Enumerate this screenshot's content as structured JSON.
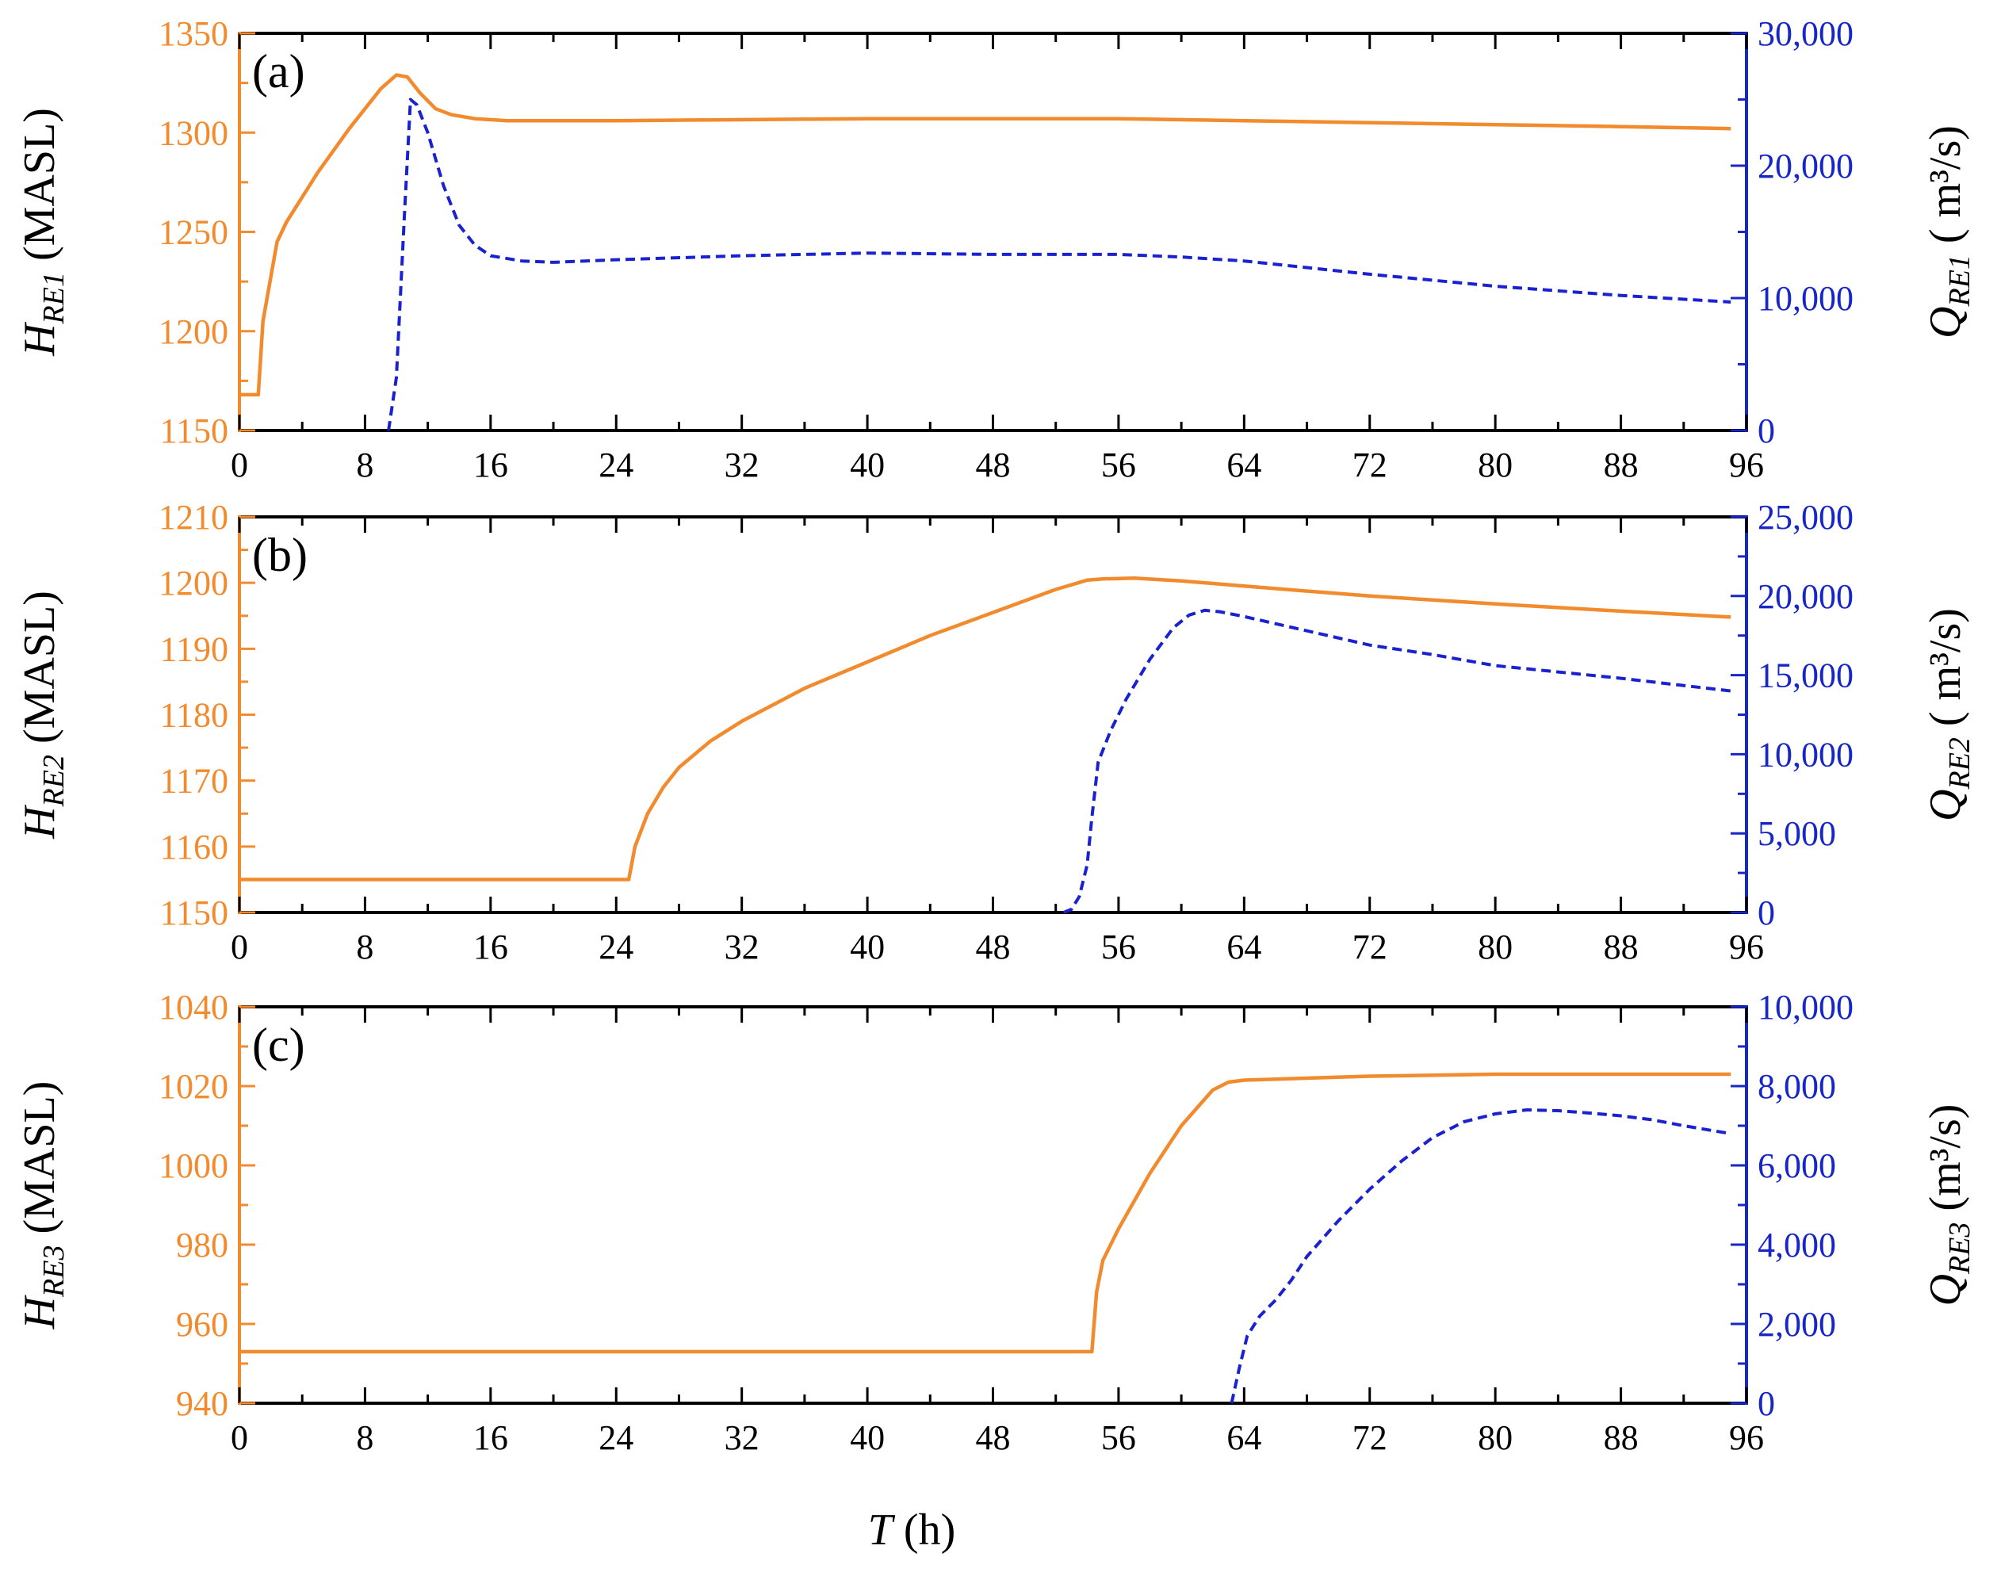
{
  "colors": {
    "left": "#f28a2e",
    "right": "#1726c7",
    "frame": "#000000",
    "orange_line": "#f28a2e",
    "blue_line": "#1a22d0"
  },
  "xaxis": {
    "label_italic": "T",
    "label_rest": " (h)"
  },
  "chart_data": [
    {
      "type": "line",
      "panel_label": "(a)",
      "xlim": [
        0,
        96
      ],
      "xticks": [
        0,
        8,
        16,
        24,
        32,
        40,
        48,
        56,
        64,
        72,
        80,
        88,
        96
      ],
      "xtick_labels": [
        "0",
        "8",
        "16",
        "24",
        "32",
        "40",
        "48",
        "56",
        "64",
        "72",
        "80",
        "88",
        "96"
      ],
      "left_axis": {
        "ylim": [
          1150,
          1350
        ],
        "ticks": [
          1150,
          1200,
          1250,
          1300,
          1350
        ],
        "tick_labels": [
          "1150",
          "1200",
          "1250",
          "1300",
          "1350"
        ],
        "label_main": "H",
        "label_sub": "RE1",
        "label_unit": " (MASL)"
      },
      "right_axis": {
        "ylim": [
          0,
          30000
        ],
        "ticks": [
          0,
          10000,
          20000,
          30000
        ],
        "tick_labels": [
          "0",
          "10,000",
          "20,000",
          "30,000"
        ],
        "label_main": "Q",
        "label_sub": "RE1",
        "label_unit": " ( m³/s)"
      },
      "series": [
        {
          "name": "H_RE1",
          "axis": "left",
          "style": "solid",
          "x": [
            0,
            1.2,
            1.5,
            2.4,
            3,
            5,
            7,
            9,
            10,
            10.7,
            11.5,
            12.5,
            13.5,
            15,
            17,
            24,
            40,
            56,
            64,
            72,
            80,
            88,
            95
          ],
          "y": [
            1168,
            1168,
            1205,
            1245,
            1255,
            1280,
            1302,
            1322,
            1329,
            1328,
            1320,
            1312,
            1309,
            1307,
            1306,
            1306,
            1307,
            1307,
            1306,
            1305,
            1304,
            1303,
            1302
          ]
        },
        {
          "name": "Q_RE1",
          "axis": "right",
          "style": "dashed",
          "x": [
            9.5,
            10,
            10.5,
            10.9,
            11.3,
            12,
            13,
            14,
            15,
            16,
            18,
            20,
            24,
            32,
            40,
            48,
            56,
            60,
            64,
            72,
            80,
            88,
            95
          ],
          "y": [
            0,
            4000,
            16000,
            25000,
            24600,
            22500,
            18500,
            15500,
            14000,
            13200,
            12800,
            12700,
            12900,
            13200,
            13400,
            13300,
            13300,
            13100,
            12800,
            11800,
            10900,
            10200,
            9700
          ]
        }
      ]
    },
    {
      "type": "line",
      "panel_label": "(b)",
      "xlim": [
        0,
        96
      ],
      "xticks": [
        0,
        8,
        16,
        24,
        32,
        40,
        48,
        56,
        64,
        72,
        80,
        88,
        96
      ],
      "xtick_labels": [
        "0",
        "8",
        "16",
        "24",
        "32",
        "40",
        "48",
        "56",
        "64",
        "72",
        "80",
        "88",
        "96"
      ],
      "left_axis": {
        "ylim": [
          1150,
          1210
        ],
        "ticks": [
          1150,
          1160,
          1170,
          1180,
          1190,
          1200,
          1210
        ],
        "tick_labels": [
          "1150",
          "1160",
          "1170",
          "1180",
          "1190",
          "1200",
          "1210"
        ],
        "label_main": "H",
        "label_sub": "RE2",
        "label_unit": " (MASL)"
      },
      "right_axis": {
        "ylim": [
          0,
          25000
        ],
        "ticks": [
          0,
          5000,
          10000,
          15000,
          20000,
          25000
        ],
        "tick_labels": [
          "0",
          "5,000",
          "10,000",
          "15,000",
          "20,000",
          "25,000"
        ],
        "label_main": "Q",
        "label_sub": "RE2",
        "label_unit": " ( m³/s)"
      },
      "series": [
        {
          "name": "H_RE2",
          "axis": "left",
          "style": "solid",
          "x": [
            0,
            24.8,
            25.2,
            26,
            27,
            28,
            30,
            32,
            36,
            40,
            44,
            48,
            52,
            54,
            55,
            57,
            60,
            64,
            72,
            80,
            88,
            95
          ],
          "y": [
            1155,
            1155,
            1160,
            1165,
            1169,
            1172,
            1176,
            1179,
            1184,
            1188,
            1192,
            1195.5,
            1199,
            1200.4,
            1200.6,
            1200.7,
            1200.3,
            1199.5,
            1198,
            1196.8,
            1195.7,
            1194.8
          ]
        },
        {
          "name": "Q_RE2",
          "axis": "right",
          "style": "dashed",
          "x": [
            52.5,
            53,
            53.5,
            54,
            54.3,
            54.7,
            55.5,
            56.5,
            58,
            59.5,
            60.5,
            61.5,
            62.5,
            64,
            68,
            72,
            76,
            80,
            88,
            95
          ],
          "y": [
            0,
            200,
            1000,
            3000,
            6000,
            9500,
            11500,
            13500,
            16000,
            18000,
            18800,
            19100,
            19000,
            18700,
            17800,
            16900,
            16300,
            15600,
            14800,
            14000
          ]
        }
      ]
    },
    {
      "type": "line",
      "panel_label": "(c)",
      "xlim": [
        0,
        96
      ],
      "xticks": [
        0,
        8,
        16,
        24,
        32,
        40,
        48,
        56,
        64,
        72,
        80,
        88,
        96
      ],
      "xtick_labels": [
        "0",
        "8",
        "16",
        "24",
        "32",
        "40",
        "48",
        "56",
        "64",
        "72",
        "80",
        "88",
        "96"
      ],
      "left_axis": {
        "ylim": [
          940,
          1040
        ],
        "ticks": [
          940,
          960,
          980,
          1000,
          1020,
          1040
        ],
        "tick_labels": [
          "940",
          "960",
          "980",
          "1000",
          "1020",
          "1040"
        ],
        "label_main": "H",
        "label_sub": "RE3",
        "label_unit": " (MASL)"
      },
      "right_axis": {
        "ylim": [
          0,
          10000
        ],
        "ticks": [
          0,
          2000,
          4000,
          6000,
          8000,
          10000
        ],
        "tick_labels": [
          "0",
          "2,000",
          "4,000",
          "6,000",
          "8,000",
          "10,000"
        ],
        "label_main": "Q",
        "label_sub": "RE3",
        "label_unit": " (m³/s)"
      },
      "series": [
        {
          "name": "H_RE3",
          "axis": "left",
          "style": "solid",
          "x": [
            0,
            54.3,
            54.6,
            55,
            56,
            58,
            60,
            62,
            63,
            64,
            72,
            80,
            88,
            95
          ],
          "y": [
            953,
            953,
            968,
            976,
            984,
            998,
            1010,
            1019,
            1021,
            1021.5,
            1022.5,
            1023,
            1023,
            1023
          ]
        },
        {
          "name": "Q_RE3",
          "axis": "right",
          "style": "dashed",
          "x": [
            63.2,
            63.7,
            64.2,
            65,
            66,
            67,
            68,
            70,
            72,
            74,
            76,
            78,
            80,
            82,
            84,
            86,
            88,
            90,
            92,
            95
          ],
          "y": [
            0,
            900,
            1700,
            2200,
            2600,
            3100,
            3700,
            4600,
            5400,
            6100,
            6700,
            7100,
            7300,
            7400,
            7380,
            7320,
            7250,
            7150,
            7000,
            6800
          ]
        }
      ]
    }
  ]
}
